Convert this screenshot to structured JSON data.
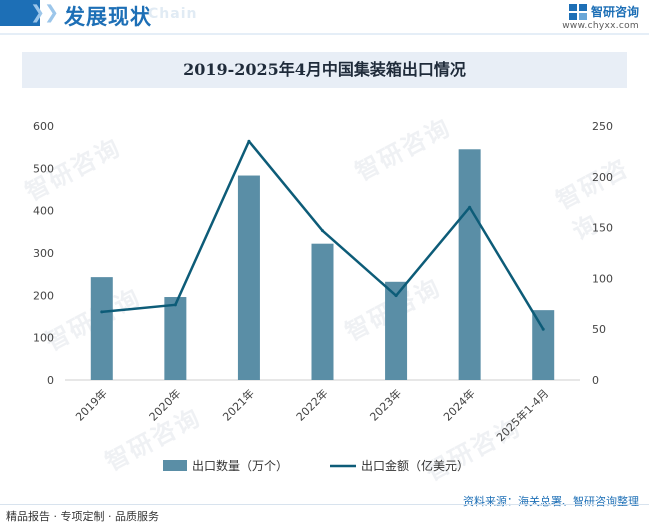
{
  "header": {
    "title": "发展现状",
    "subtitle": "Chain",
    "brand_name": "智研咨询",
    "brand_url": "www.chyxx.com"
  },
  "chart_title": "2019-2025年4月中国集装箱出口情况",
  "chart_data": {
    "type": "bar+line",
    "title": "2019-2025年4月中国集装箱出口情况",
    "categories": [
      "2019年",
      "2020年",
      "2021年",
      "2022年",
      "2023年",
      "2024年",
      "2025年1-4月"
    ],
    "series": [
      {
        "name": "出口数量（万个）",
        "type": "bar",
        "axis": "left",
        "values": [
          243,
          196,
          483,
          322,
          232,
          545,
          165
        ]
      },
      {
        "name": "出口金额（亿美元）",
        "type": "line",
        "axis": "right",
        "values": [
          67,
          74,
          235,
          147,
          83,
          170,
          50
        ]
      }
    ],
    "y_left": {
      "min": 0,
      "max": 600,
      "ticks": [
        0,
        100,
        200,
        300,
        400,
        500,
        600
      ]
    },
    "y_right": {
      "min": 0,
      "max": 250,
      "ticks": [
        0,
        50,
        100,
        150,
        200,
        250
      ]
    },
    "legend_position": "bottom",
    "colors": {
      "bar": "#5a8ea6",
      "line": "#0d5c78"
    }
  },
  "watermark": "智研咨询",
  "footer": {
    "left": "精品报告 · 专项定制 · 品质服务",
    "source": "资料来源：海关总署、智研咨询整理"
  }
}
